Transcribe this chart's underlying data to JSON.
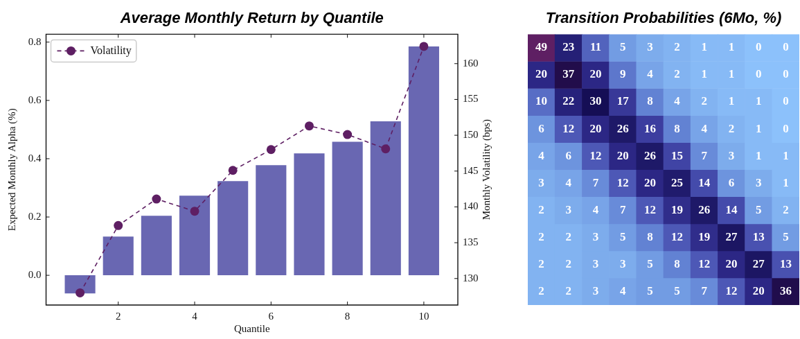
{
  "chart_data": [
    {
      "type": "bar",
      "title": "Average Monthly Return by Quantile",
      "xlabel": "Quantile",
      "ylabel": "Expected Monthly Alpha (%)",
      "y2label": "Monthly Volatility (bps)",
      "x": [
        1,
        2,
        3,
        4,
        5,
        6,
        7,
        8,
        9,
        10
      ],
      "series": [
        {
          "type": "bar",
          "color": "#6967b2",
          "values": [
            -0.062,
            0.133,
            0.204,
            0.273,
            0.323,
            0.378,
            0.418,
            0.458,
            0.528,
            0.785
          ]
        },
        {
          "type": "line",
          "name": "Volatility",
          "color": "#5e1f63",
          "axis": "y2",
          "marker": "circle",
          "line_style": "dashed",
          "values": [
            128.0,
            137.4,
            141.1,
            139.4,
            145.1,
            148.0,
            151.3,
            150.1,
            148.1,
            162.4
          ]
        }
      ],
      "xlim": [
        0.11,
        10.89
      ],
      "xticks": [
        2,
        4,
        6,
        8,
        10
      ],
      "ylim": [
        -0.102,
        0.827
      ],
      "yticks": [
        {
          "value": 0,
          "label": "0.0"
        },
        0.2,
        0.4,
        0.6,
        0.8
      ],
      "y2lim": [
        126.3,
        164.1
      ],
      "y2ticks": [
        130,
        135,
        140,
        145,
        150,
        155,
        160
      ],
      "legend": "top left",
      "grid": false
    },
    {
      "type": "heatmap",
      "title": "Transition Probabilities (6Mo, %)",
      "categories": [
        null,
        null,
        null,
        null,
        null,
        null,
        null,
        null,
        null,
        null
      ],
      "y_categories": [
        null,
        null,
        null,
        null,
        null,
        null,
        null,
        null,
        null,
        null
      ],
      "cells": [
        [
          49,
          23,
          11,
          5,
          3,
          2,
          1,
          1,
          0,
          0
        ],
        [
          20,
          37,
          20,
          9,
          4,
          2,
          1,
          1,
          0,
          0
        ],
        [
          10,
          22,
          30,
          17,
          8,
          4,
          2,
          1,
          1,
          0
        ],
        [
          6,
          12,
          20,
          26,
          16,
          8,
          4,
          2,
          1,
          0
        ],
        [
          4,
          6,
          12,
          20,
          26,
          15,
          7,
          3,
          1,
          1
        ],
        [
          3,
          4,
          7,
          12,
          20,
          25,
          14,
          6,
          3,
          1
        ],
        [
          2,
          3,
          4,
          7,
          12,
          19,
          26,
          14,
          5,
          2
        ],
        [
          2,
          2,
          3,
          5,
          8,
          12,
          19,
          27,
          13,
          5
        ],
        [
          2,
          2,
          3,
          3,
          5,
          8,
          12,
          20,
          27,
          13
        ],
        [
          2,
          2,
          3,
          4,
          5,
          5,
          7,
          12,
          20,
          36
        ]
      ],
      "data_labels": true,
      "tick_labels": false
    }
  ]
}
